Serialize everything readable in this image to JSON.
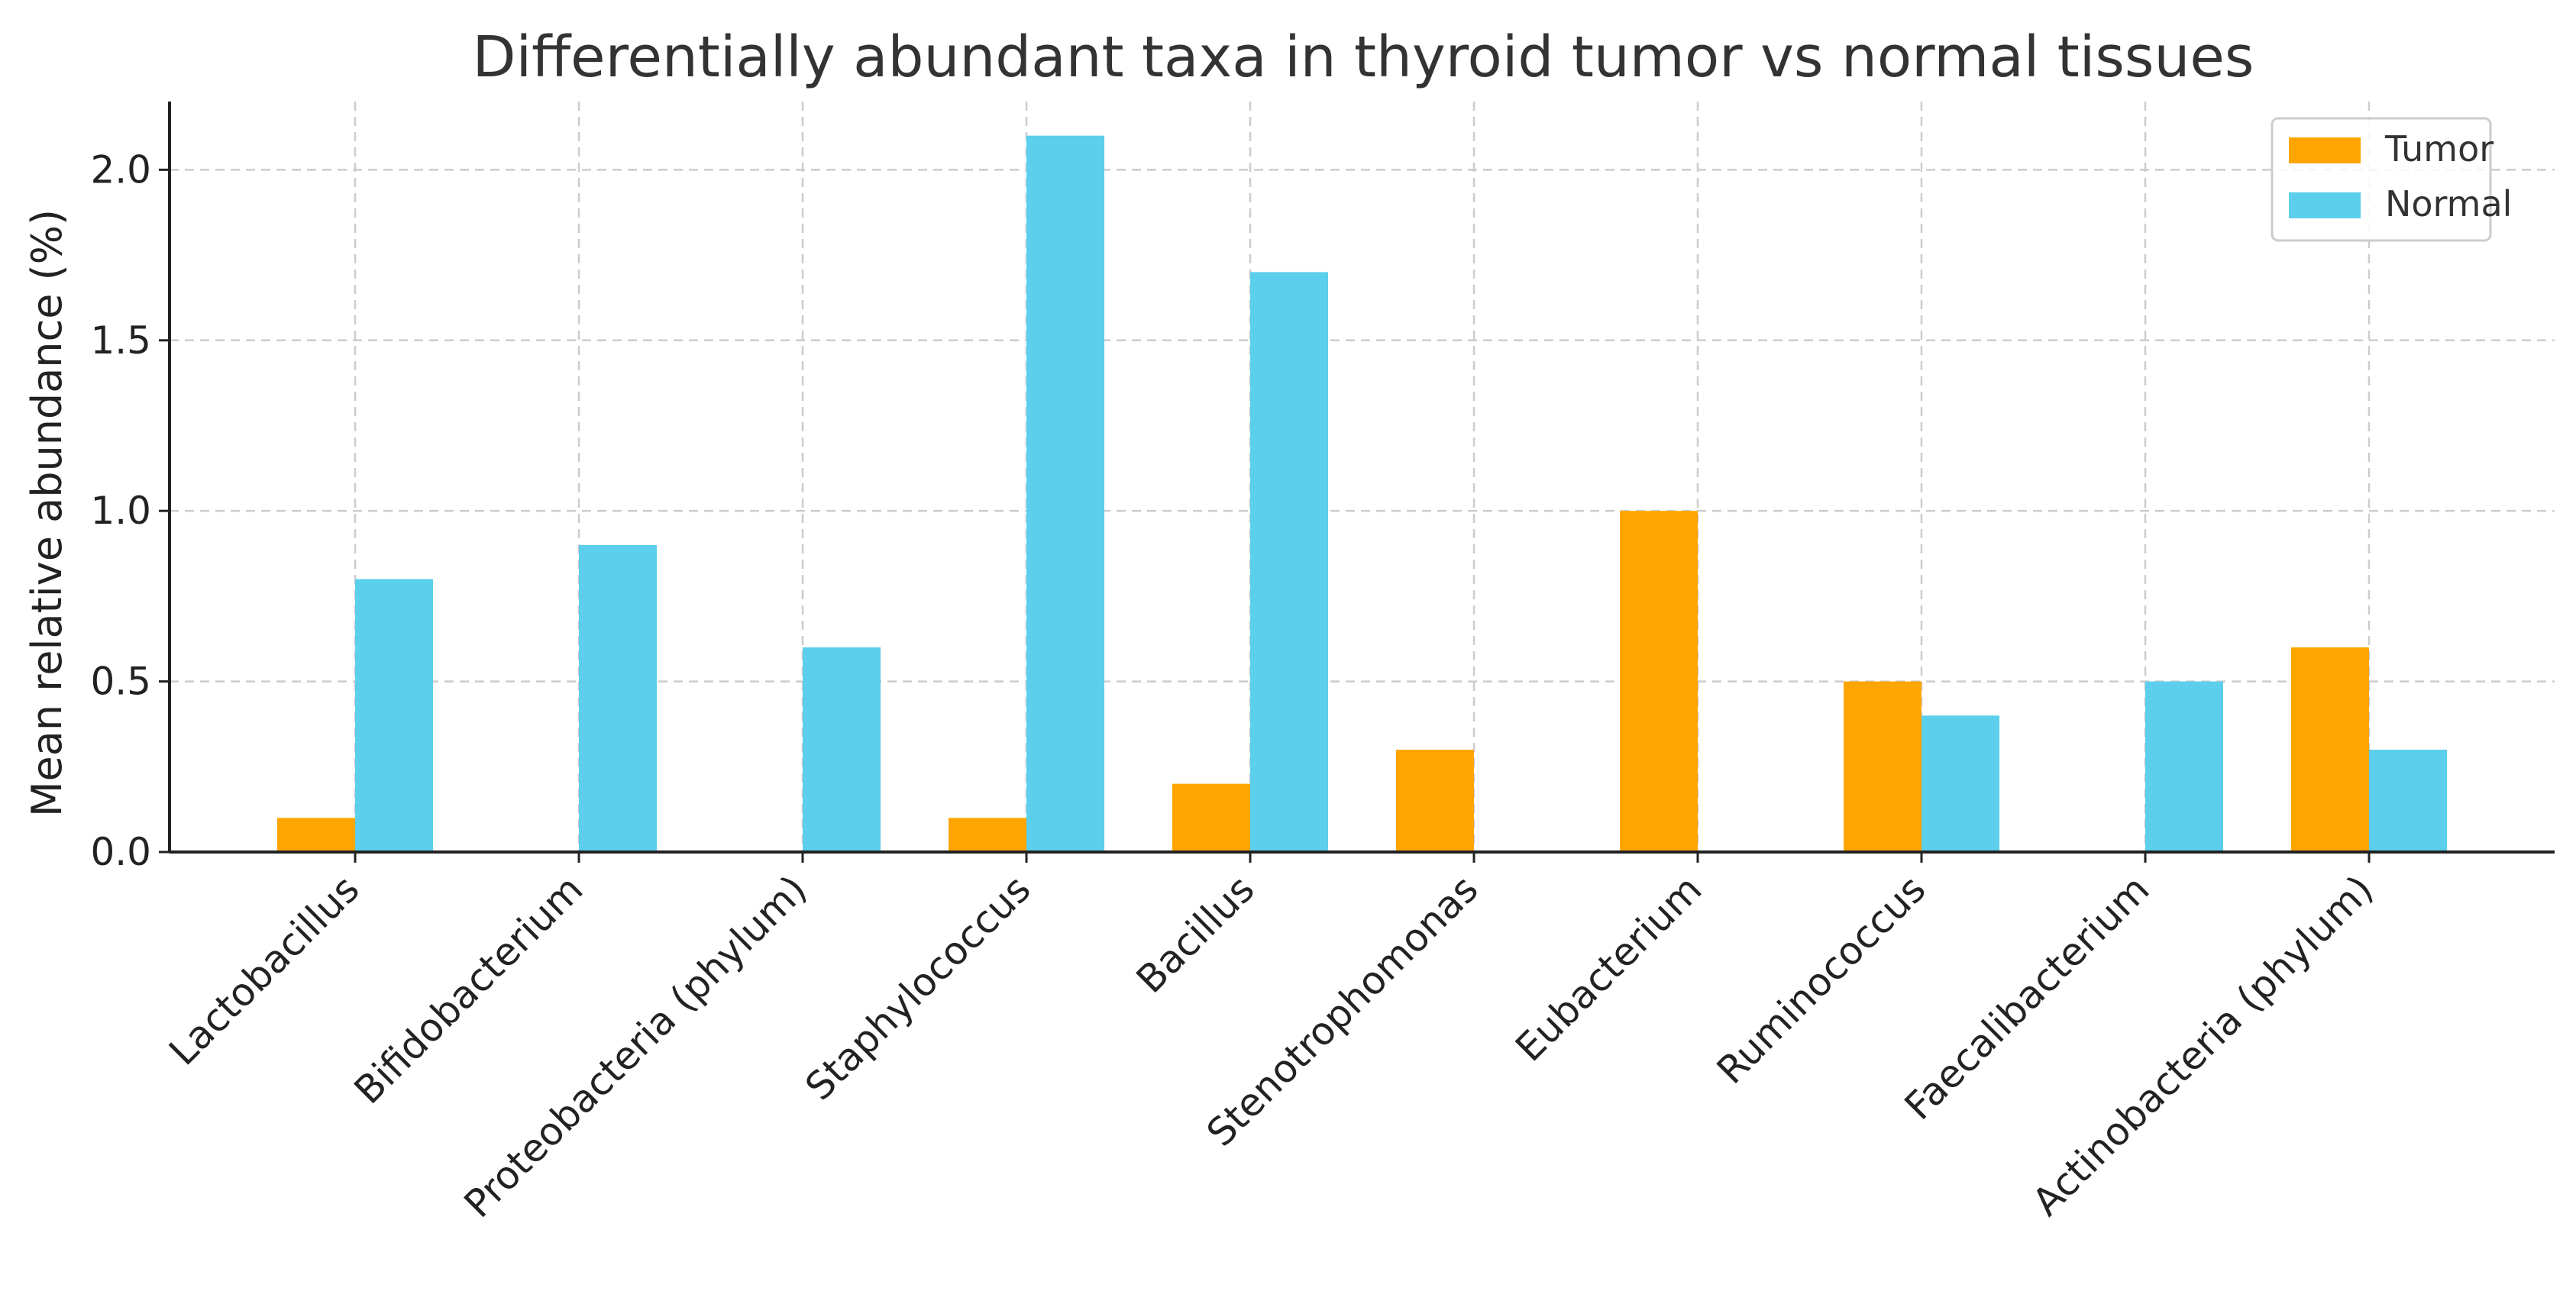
{
  "chart_data": {
    "type": "bar",
    "title": "Differentially abundant taxa in thyroid tumor vs normal tissues",
    "xlabel": "",
    "ylabel": "Mean relative abundance (%)",
    "categories": [
      "Lactobacillus",
      "Bifidobacterium",
      "Proteobacteria (phylum)",
      "Staphylococcus",
      "Bacillus",
      "Stenotrophomonas",
      "Eubacterium",
      "Ruminococcus",
      "Faecalibacterium",
      "Actinobacteria (phylum)"
    ],
    "series": [
      {
        "name": "Tumor",
        "color": "#FFA500",
        "values": [
          0.1,
          0.0,
          0.0,
          0.1,
          0.2,
          0.3,
          1.0,
          0.5,
          0.0,
          0.6
        ]
      },
      {
        "name": "Normal",
        "color": "#5BCFEC",
        "values": [
          0.8,
          0.9,
          0.6,
          2.1,
          1.7,
          0.0,
          0.0,
          0.4,
          0.5,
          0.3
        ]
      }
    ],
    "ylim": [
      0,
      2.2
    ],
    "yticks": [
      "0.0",
      "0.5",
      "1.0",
      "1.5",
      "2.0"
    ],
    "grid": true,
    "legend_position": "top-right"
  }
}
